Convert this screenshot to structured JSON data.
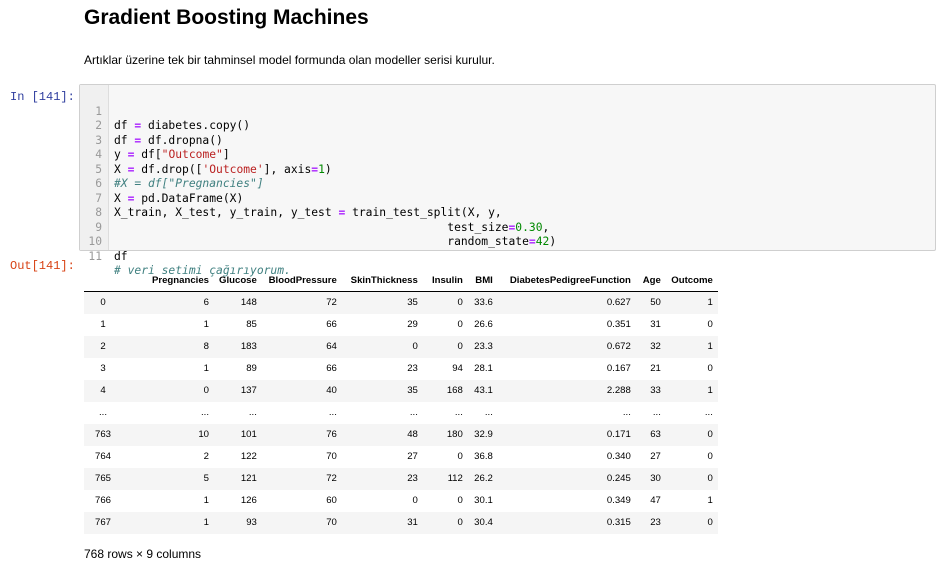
{
  "markdown": {
    "title": "Gradient Boosting Machines",
    "text": "Artıklar üzerine tek bir tahminsel model formunda olan modeller serisi kurulur."
  },
  "input_cell": {
    "prompt": "In [141]:",
    "line_numbers": [
      "1",
      "2",
      "3",
      "4",
      "5",
      "6",
      "7",
      "8",
      "9",
      "10",
      "11"
    ]
  },
  "output_cell": {
    "prompt": "Out[141]:"
  },
  "dataframe": {
    "columns": [
      "",
      "Pregnancies",
      "Glucose",
      "BloodPressure",
      "SkinThickness",
      "Insulin",
      "BMI",
      "DiabetesPedigreeFunction",
      "Age",
      "Outcome"
    ],
    "rows": [
      [
        "0",
        "6",
        "148",
        "72",
        "35",
        "0",
        "33.6",
        "0.627",
        "50",
        "1"
      ],
      [
        "1",
        "1",
        "85",
        "66",
        "29",
        "0",
        "26.6",
        "0.351",
        "31",
        "0"
      ],
      [
        "2",
        "8",
        "183",
        "64",
        "0",
        "0",
        "23.3",
        "0.672",
        "32",
        "1"
      ],
      [
        "3",
        "1",
        "89",
        "66",
        "23",
        "94",
        "28.1",
        "0.167",
        "21",
        "0"
      ],
      [
        "4",
        "0",
        "137",
        "40",
        "35",
        "168",
        "43.1",
        "2.288",
        "33",
        "1"
      ],
      [
        "...",
        "...",
        "...",
        "...",
        "...",
        "...",
        "...",
        "...",
        "...",
        "..."
      ],
      [
        "763",
        "10",
        "101",
        "76",
        "48",
        "180",
        "32.9",
        "0.171",
        "63",
        "0"
      ],
      [
        "764",
        "2",
        "122",
        "70",
        "27",
        "0",
        "36.8",
        "0.340",
        "27",
        "0"
      ],
      [
        "765",
        "5",
        "121",
        "72",
        "23",
        "112",
        "26.2",
        "0.245",
        "30",
        "0"
      ],
      [
        "766",
        "1",
        "126",
        "60",
        "0",
        "0",
        "30.1",
        "0.349",
        "47",
        "1"
      ],
      [
        "767",
        "1",
        "93",
        "70",
        "31",
        "0",
        "30.4",
        "0.315",
        "23",
        "0"
      ]
    ],
    "shape_text": "768 rows × 9 columns"
  },
  "code_tokens": {
    "l1_var": "df ",
    "l1_op": "=",
    "l1_rest": " diabetes.copy()",
    "l2_var": "df ",
    "l2_op": "=",
    "l2_rest": " df.dropna()",
    "l3_var": "y ",
    "l3_op": "=",
    "l3_mid": " df[",
    "l3_str": "\"Outcome\"",
    "l3_end": "]",
    "l4_var": "X ",
    "l4_op": "=",
    "l4_mid": " df.drop([",
    "l4_str": "'Outcome'",
    "l4_mid2": "], axis",
    "l4_op2": "=",
    "l4_num": "1",
    "l4_end": ")",
    "l5_com": "#X = df[\"Pregnancies\"]",
    "l6_var": "X ",
    "l6_op": "=",
    "l6_rest": " pd.DataFrame(X)",
    "l7_var": "X_train, X_test, y_train, y_test ",
    "l7_op": "=",
    "l7_rest": " train_test_split(X, y,",
    "l8_pad": "                                                 test_size",
    "l8_op": "=",
    "l8_num": "0.30",
    "l8_end": ",",
    "l9_pad": "                                                 random_state",
    "l9_op": "=",
    "l9_num": "42",
    "l9_end": ")",
    "l10_rest": "df",
    "l11_com": "# veri setimi çağırıyorum."
  },
  "colors": {
    "in_prompt": "#303f9f",
    "out_prompt": "#d84315",
    "operator": "#aa22ff",
    "string": "#ba2121",
    "number": "#008800",
    "comment": "#408080"
  }
}
